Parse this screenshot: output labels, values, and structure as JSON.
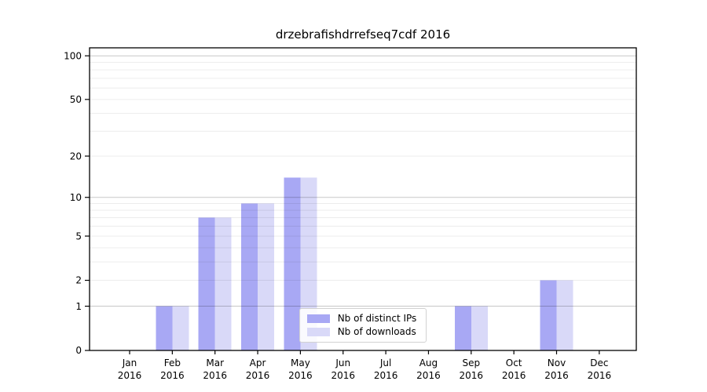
{
  "chart_data": {
    "type": "bar",
    "title": "drzebrafishdrrefseq7cdf 2016",
    "categories": [
      "Jan",
      "Feb",
      "Mar",
      "Apr",
      "May",
      "Jun",
      "Jul",
      "Aug",
      "Sep",
      "Oct",
      "Nov",
      "Dec"
    ],
    "x_year_label": "2016",
    "series": [
      {
        "name": "Nb of distinct IPs",
        "color": "#a8a8f4",
        "values": [
          0,
          1,
          7,
          9,
          14,
          0,
          0,
          0,
          1,
          0,
          2,
          0
        ]
      },
      {
        "name": "Nb of downloads",
        "color": "#d9d9f8",
        "values": [
          0,
          1,
          7,
          9,
          14,
          0,
          0,
          0,
          1,
          0,
          2,
          0
        ]
      }
    ],
    "y_axis": {
      "scale": "log1p",
      "tick_values": [
        0,
        1,
        2,
        5,
        10,
        20,
        50,
        100
      ],
      "major_grid_values": [
        1,
        10,
        100
      ],
      "minor_grid_values": [
        2,
        3,
        4,
        5,
        6,
        7,
        8,
        9,
        20,
        30,
        40,
        50,
        60,
        70,
        80,
        90
      ],
      "range": [
        0,
        100
      ]
    },
    "legend_position": "lower center",
    "grid": true
  },
  "colors": {
    "background": "#ffffff",
    "axis": "#000000",
    "text": "#000000",
    "grid_major_rgba": "rgba(0,0,0,0.22)",
    "grid_minor_rgba": "rgba(0,0,0,0.075)",
    "bar_distinct_ips": "#a8a8f4",
    "bar_downloads": "#d9d9f8"
  }
}
